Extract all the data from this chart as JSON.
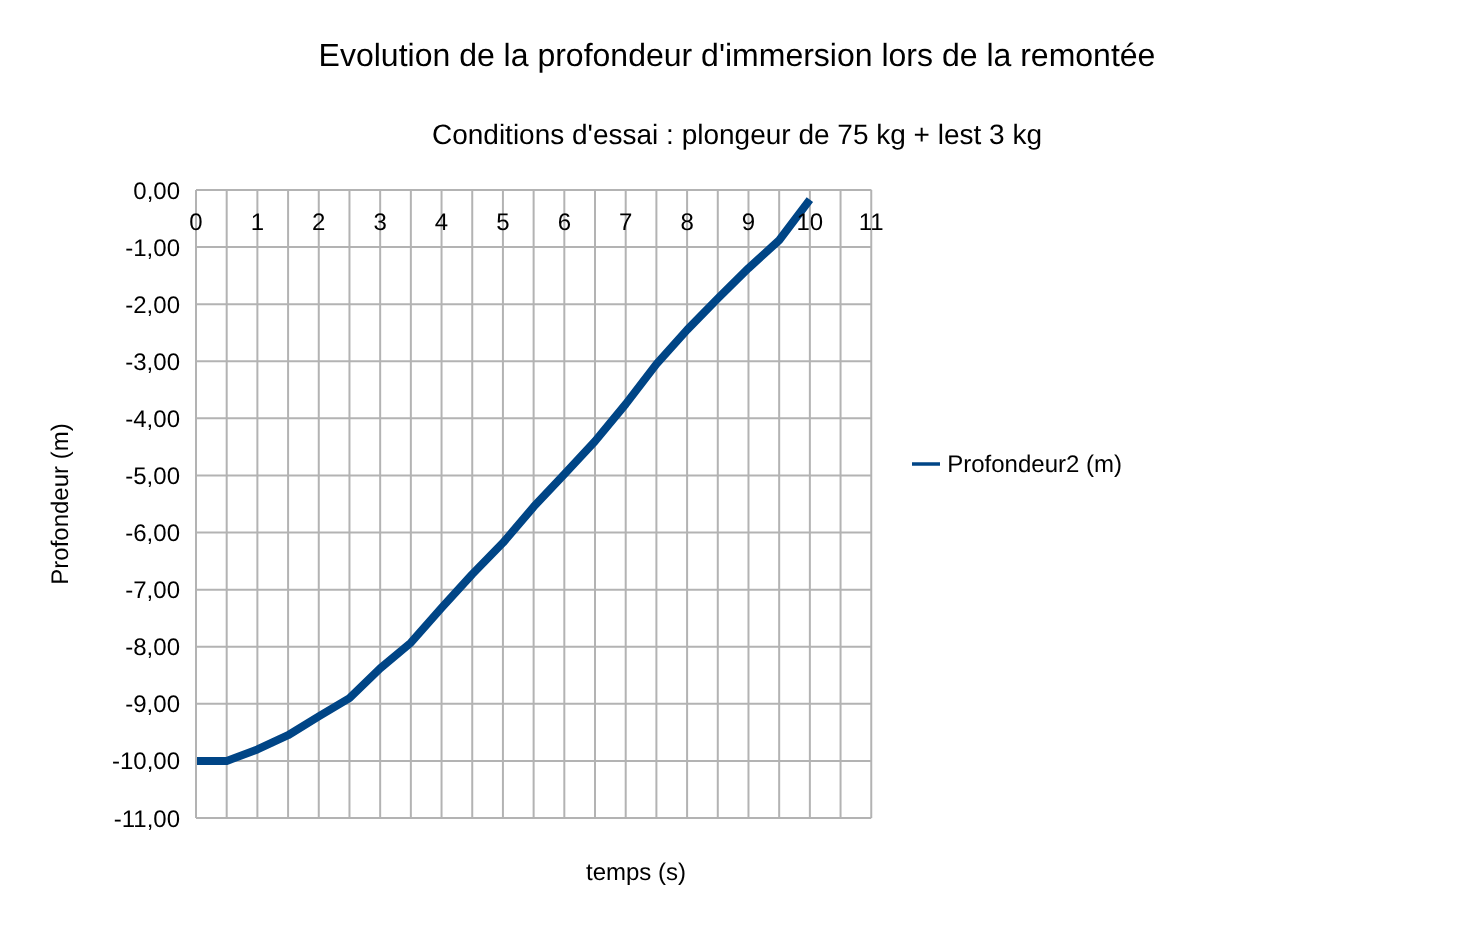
{
  "chart_data": {
    "type": "line",
    "title": "Evolution de la profondeur d'immersion lors de la remontée",
    "subtitle": "Conditions d'essai : plongeur de 75 kg + lest 3 kg",
    "xlabel": "temps (s)",
    "ylabel": "Profondeur (m)",
    "x": [
      0,
      0.5,
      1,
      1.5,
      2,
      2.5,
      3,
      3.5,
      4,
      4.5,
      5,
      5.5,
      6,
      6.5,
      7,
      7.5,
      8,
      8.5,
      9,
      9.5,
      10
    ],
    "series": [
      {
        "name": "Profondeur2 (m)",
        "color": "#004586",
        "values": [
          -10,
          -10,
          -9.8,
          -9.55,
          -9.22,
          -8.9,
          -8.38,
          -7.93,
          -7.32,
          -6.73,
          -6.18,
          -5.55,
          -4.98,
          -4.4,
          -3.75,
          -3.05,
          -2.45,
          -1.9,
          -1.37,
          -0.88,
          -0.17
        ]
      }
    ],
    "xlim": [
      0,
      11
    ],
    "xticks": [
      0,
      {
        "value": 0.5,
        "label": null
      },
      1,
      {
        "value": 1.5,
        "label": null
      },
      2,
      {
        "value": 2.5,
        "label": null
      },
      3,
      {
        "value": 3.5,
        "label": null
      },
      4,
      {
        "value": 4.5,
        "label": null
      },
      5,
      {
        "value": 5.5,
        "label": null
      },
      6,
      {
        "value": 6.5,
        "label": null
      },
      7,
      {
        "value": 7.5,
        "label": null
      },
      8,
      {
        "value": 8.5,
        "label": null
      },
      9,
      {
        "value": 9.5,
        "label": null
      },
      10,
      {
        "value": 10.5,
        "label": null
      },
      11
    ],
    "ylim": [
      -11,
      0
    ],
    "yticks": [
      {
        "value": 0,
        "label": "0,00"
      },
      {
        "value": -1,
        "label": "-1,00"
      },
      {
        "value": -2,
        "label": "-2,00"
      },
      {
        "value": -3,
        "label": "-3,00"
      },
      {
        "value": -4,
        "label": "-4,00"
      },
      {
        "value": -5,
        "label": "-5,00"
      },
      {
        "value": -6,
        "label": "-6,00"
      },
      {
        "value": -7,
        "label": "-7,00"
      },
      {
        "value": -8,
        "label": "-8,00"
      },
      {
        "value": -9,
        "label": "-9,00"
      },
      {
        "value": -10,
        "label": "-10,00"
      },
      {
        "value": -11,
        "label": "-11,00"
      }
    ],
    "grid": true,
    "legend": "right",
    "marker": "none",
    "line_style": "solid"
  }
}
